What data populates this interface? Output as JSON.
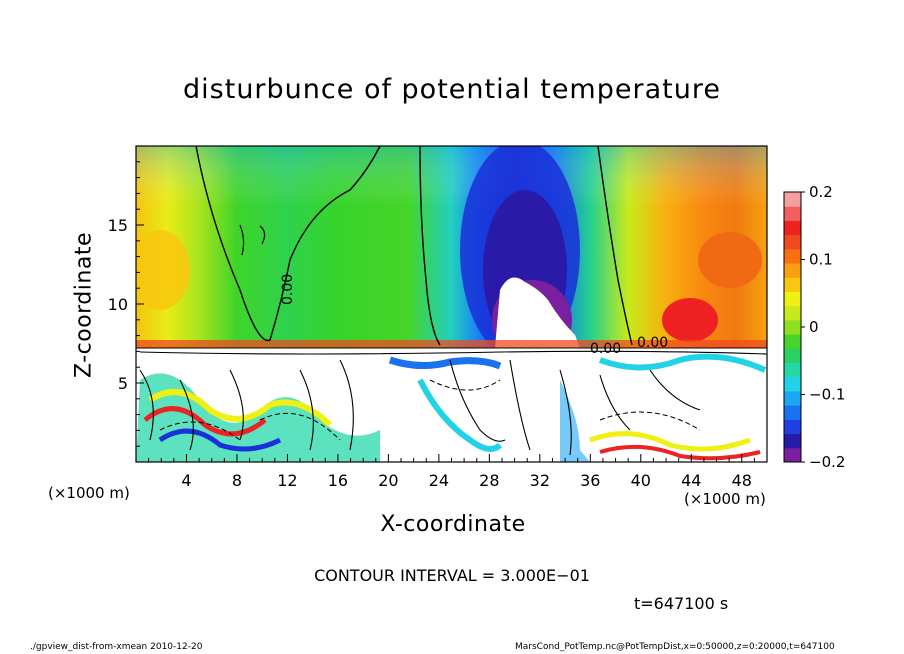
{
  "chart_data": {
    "type": "heatmap",
    "title": "disturbunce of potential temperature",
    "xlabel": "X-coordinate",
    "ylabel": "Z-coordinate",
    "x_unit_label": "(×1000 m)",
    "x_ticks": [
      4,
      8,
      12,
      16,
      20,
      24,
      28,
      32,
      36,
      40,
      44,
      48
    ],
    "y_ticks": [
      5,
      10,
      15
    ],
    "xlim": [
      0,
      50
    ],
    "ylim": [
      0,
      20
    ],
    "colorbar": {
      "ticks": [
        0.2,
        0.1,
        0,
        -0.1,
        -0.2
      ],
      "tick_labels": [
        "0.2",
        "0.1",
        "0",
        "−0.1",
        "−0.2"
      ],
      "range": [
        -0.2,
        0.2
      ],
      "colors": [
        "#7a1fa0",
        "#2a1aa8",
        "#1f3fe0",
        "#1a72f0",
        "#1aa8f5",
        "#22d2e6",
        "#26d8a8",
        "#2ad060",
        "#48d42a",
        "#8ee020",
        "#c6ea1a",
        "#f0f014",
        "#f8c810",
        "#f8a010",
        "#f87010",
        "#f04a20",
        "#ee2222",
        "#f06060",
        "#f4a0a0"
      ]
    },
    "contour_labels": [
      "0.00",
      "0.00",
      "0.00"
    ],
    "contour_interval_text": "CONTOUR INTERVAL = 3.000E−01",
    "time_text": "t=647100 s",
    "footer_left": "./gpview_dist-from-xmean  2010-12-20",
    "footer_right": "MarsCond_PotTemp.nc@PotTempDist,x=0:50000,z=0:20000,t=647100"
  }
}
